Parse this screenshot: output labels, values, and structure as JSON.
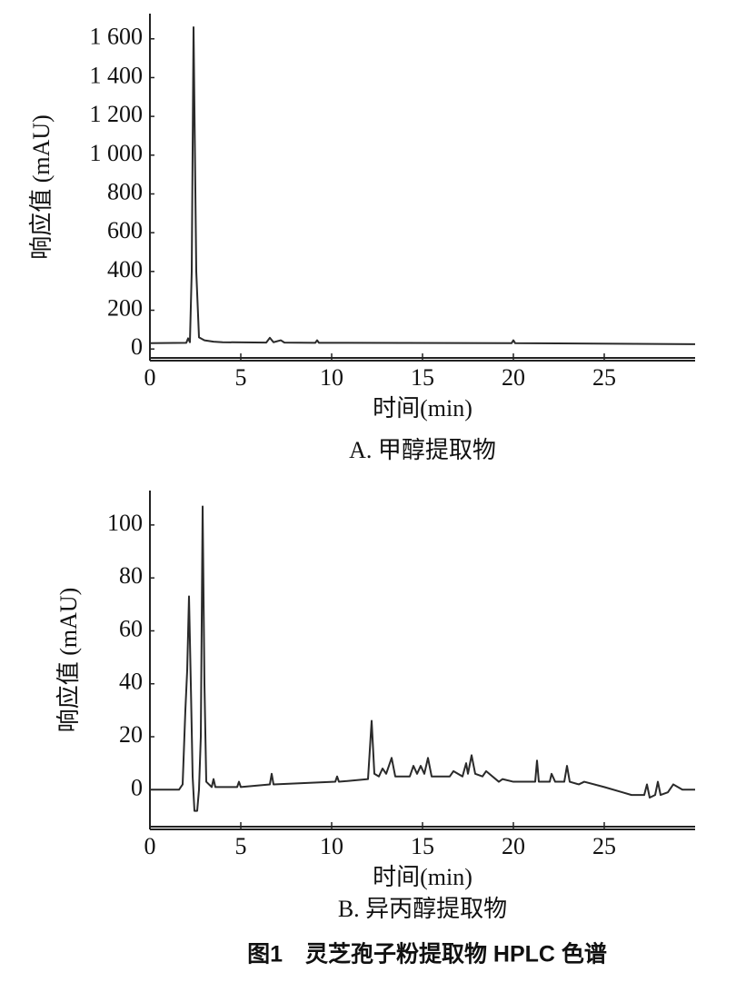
{
  "chart_data": [
    {
      "type": "line",
      "title": "A. 甲醇提取物",
      "xlabel": "时间(min)",
      "ylabel": "响应值 (mAU)",
      "color": "#2a2a2a",
      "x": [
        0,
        2.0,
        2.1,
        2.2,
        2.3,
        2.4,
        2.55,
        2.7,
        3.0,
        3.5,
        4.0,
        6.4,
        6.6,
        6.8,
        7.2,
        7.4,
        9.1,
        9.2,
        9.3,
        19.9,
        20.0,
        20.1,
        30
      ],
      "values": [
        30,
        32,
        55,
        35,
        400,
        1660,
        400,
        60,
        45,
        38,
        35,
        33,
        58,
        35,
        45,
        33,
        32,
        45,
        32,
        30,
        45,
        30,
        25
      ],
      "xlim": [
        0,
        30
      ],
      "ylim": [
        -60,
        1730
      ],
      "xticks": [
        0,
        5,
        10,
        15,
        20,
        25
      ],
      "yticks": [
        0,
        200,
        400,
        600,
        800,
        {
          "value": 1000,
          "label": "1 000"
        },
        {
          "value": 1200,
          "label": "1 200"
        },
        {
          "value": 1400,
          "label": "1 400"
        },
        {
          "value": 1600,
          "label": "1 600"
        }
      ]
    },
    {
      "type": "line",
      "title": "B. 异丙醇提取物",
      "xlabel": "时间(min)",
      "ylabel": "响应值 (mAU)",
      "color": "#2a2a2a",
      "x": [
        0,
        1.6,
        1.8,
        1.95,
        2.05,
        2.15,
        2.25,
        2.35,
        2.45,
        2.6,
        2.7,
        2.8,
        2.9,
        3.0,
        3.1,
        3.4,
        3.5,
        3.6,
        4.8,
        4.9,
        5.0,
        6.6,
        6.7,
        6.8,
        10.2,
        10.3,
        10.4,
        12.0,
        12.2,
        12.35,
        12.6,
        12.8,
        13.0,
        13.3,
        13.5,
        14.3,
        14.5,
        14.7,
        14.9,
        15.1,
        15.3,
        15.5,
        16.5,
        16.7,
        17.2,
        17.4,
        17.5,
        17.7,
        17.9,
        18.3,
        18.5,
        19.2,
        19.4,
        20,
        21.2,
        21.3,
        21.4,
        22.0,
        22.1,
        22.3,
        22.8,
        22.95,
        23.1,
        23.6,
        23.9,
        25,
        26,
        26.5,
        27.2,
        27.35,
        27.5,
        27.8,
        27.95,
        28.1,
        28.5,
        28.8,
        29.3,
        30
      ],
      "values": [
        0,
        0,
        2,
        30,
        45,
        73,
        40,
        5,
        -8,
        -8,
        0,
        20,
        107,
        40,
        3,
        1,
        4,
        1,
        1,
        3,
        1,
        2,
        6,
        2,
        3,
        5,
        3,
        4,
        26,
        6,
        5,
        8,
        6,
        12,
        5,
        5,
        9,
        6,
        9,
        6,
        12,
        5,
        5,
        7,
        5,
        10,
        6,
        13,
        6,
        5,
        7,
        3,
        4,
        3,
        3,
        11,
        3,
        3,
        6,
        3,
        3,
        9,
        3,
        2,
        3,
        1,
        -1,
        -2,
        -2,
        2,
        -3,
        -2,
        3,
        -2,
        -1,
        2,
        0,
        0
      ],
      "xlim": [
        0,
        30
      ],
      "ylim": [
        -15,
        113
      ],
      "xticks": [
        0,
        5,
        10,
        15,
        20,
        25
      ],
      "yticks": [
        0,
        20,
        40,
        60,
        80,
        100
      ]
    }
  ],
  "figure_caption": "图1　灵芝孢子粉提取物 HPLC 色谱"
}
